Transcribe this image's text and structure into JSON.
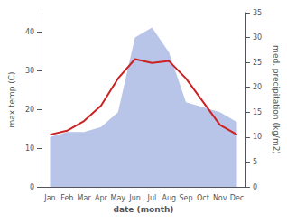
{
  "chart_data": {
    "type": "line",
    "xlabel": "date (month)",
    "ylabel": "max temp (C)",
    "y2label": "med. precipitation (kg/m2)",
    "categories": [
      "Jan",
      "Feb",
      "Mar",
      "Apr",
      "May",
      "Jun",
      "Jul",
      "Aug",
      "Sep",
      "Oct",
      "Nov",
      "Dec"
    ],
    "series": [
      {
        "type": "area",
        "axis": "y2",
        "color": "#b8c4e8",
        "values": [
          10.0,
          11.0,
          11.0,
          12.0,
          15.0,
          30.0,
          32.0,
          27.0,
          17.0,
          16.0,
          15.0,
          13.0
        ]
      },
      {
        "type": "line",
        "color": "#cc2222",
        "values": [
          13.5,
          14.5,
          17.0,
          21.0,
          28.0,
          33.0,
          32.0,
          32.5,
          28.0,
          22.0,
          16.0,
          13.5
        ]
      }
    ],
    "ylim": [
      0,
      45
    ],
    "yticks": [
      0,
      10,
      20,
      30,
      40
    ],
    "y2lim": [
      0,
      35
    ],
    "y2ticks": [
      0,
      5,
      10,
      15,
      20,
      25,
      30,
      35
    ],
    "grid": false
  }
}
